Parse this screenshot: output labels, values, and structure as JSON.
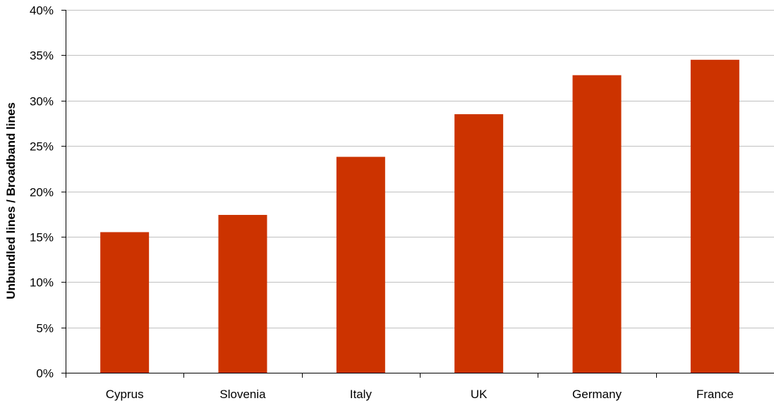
{
  "chart_data": {
    "type": "bar",
    "title": "",
    "xlabel": "",
    "ylabel": "Unbundled lines / Broadband lines",
    "categories": [
      "Cyprus",
      "Slovenia",
      "Italy",
      "UK",
      "Germany",
      "France"
    ],
    "values": [
      15.5,
      17.4,
      23.8,
      28.5,
      32.8,
      34.5
    ],
    "ylim": [
      0,
      40
    ],
    "yticks": [
      0,
      5,
      10,
      15,
      20,
      25,
      30,
      35,
      40
    ],
    "ytick_labels": [
      "0%",
      "5%",
      "10%",
      "15%",
      "20%",
      "25%",
      "30%",
      "35%",
      "40%"
    ],
    "grid": true,
    "legend": "none",
    "bar_color": "#cc3300",
    "grid_color": "#c0c0c0"
  }
}
